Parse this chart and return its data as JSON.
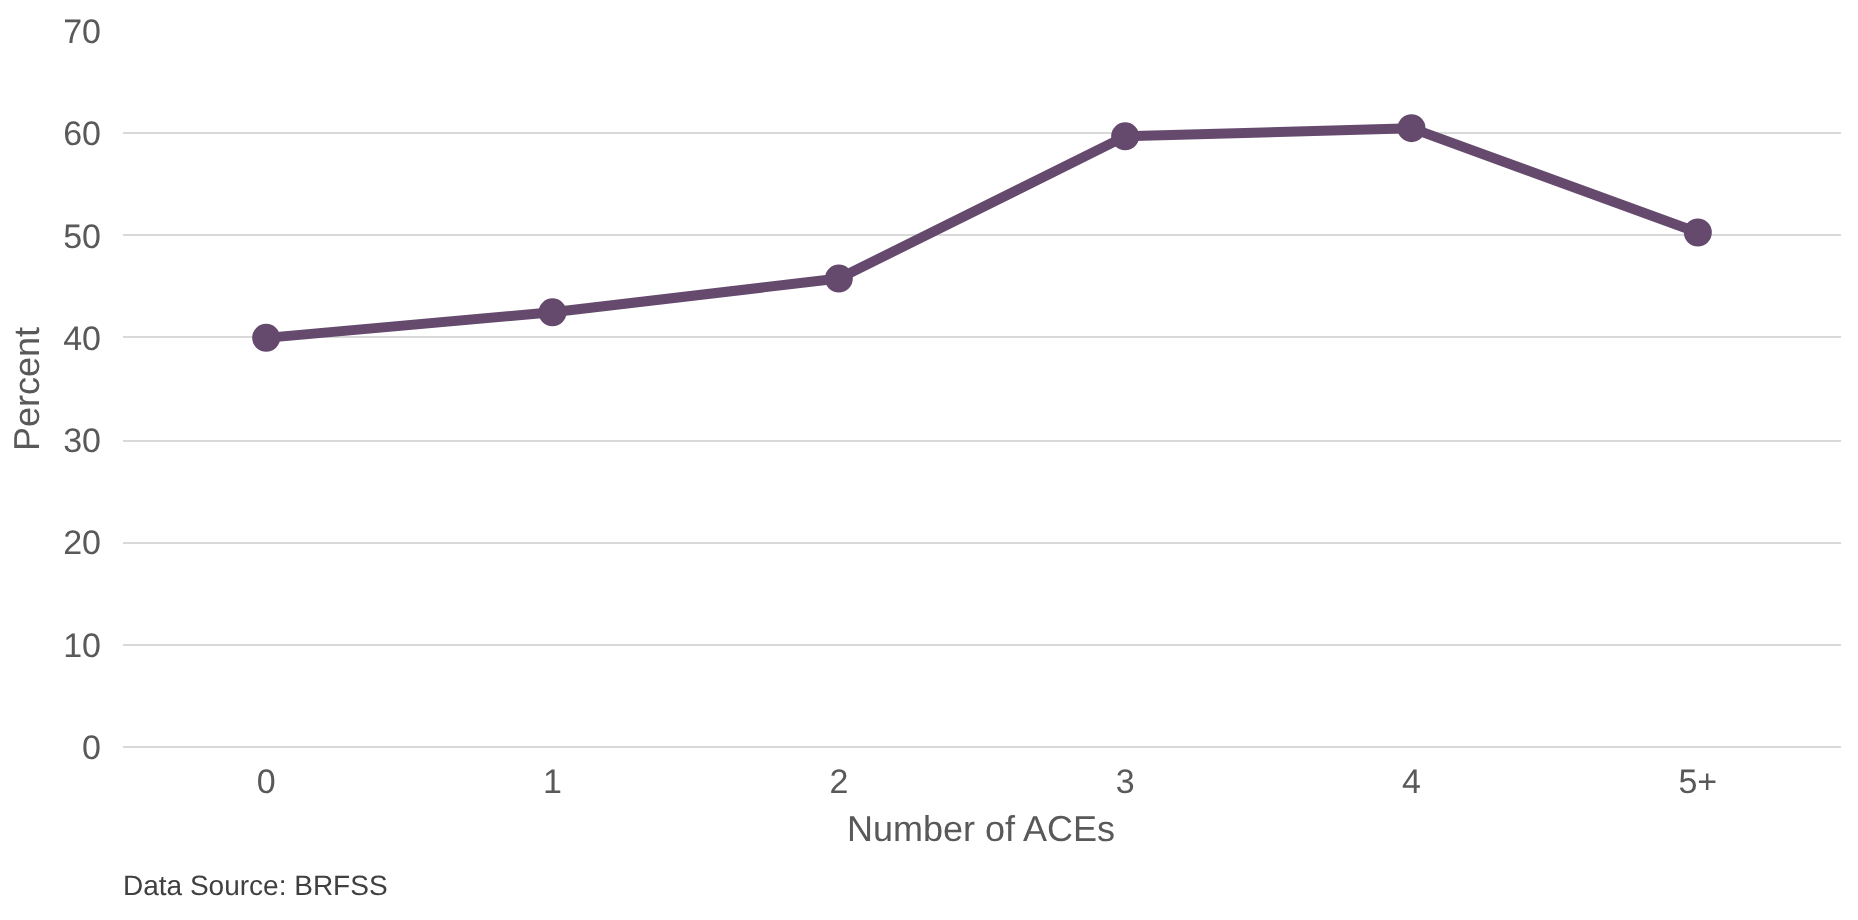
{
  "chart_data": {
    "type": "line",
    "xlabel": "Number of ACEs",
    "ylabel": "Percent",
    "categories": [
      "0",
      "1",
      "2",
      "3",
      "4",
      "5+"
    ],
    "series": [
      {
        "color": "#654a6e",
        "values": [
          40.0,
          42.5,
          45.8,
          59.7,
          60.5,
          50.3
        ]
      }
    ],
    "ylim": [
      0,
      70
    ],
    "yticks": [
      0,
      10,
      20,
      30,
      40,
      50,
      60,
      70
    ],
    "grid": "y",
    "marker": "circle",
    "line_style": "solid",
    "annotations": [
      "Data Source: BRFSS"
    ]
  }
}
